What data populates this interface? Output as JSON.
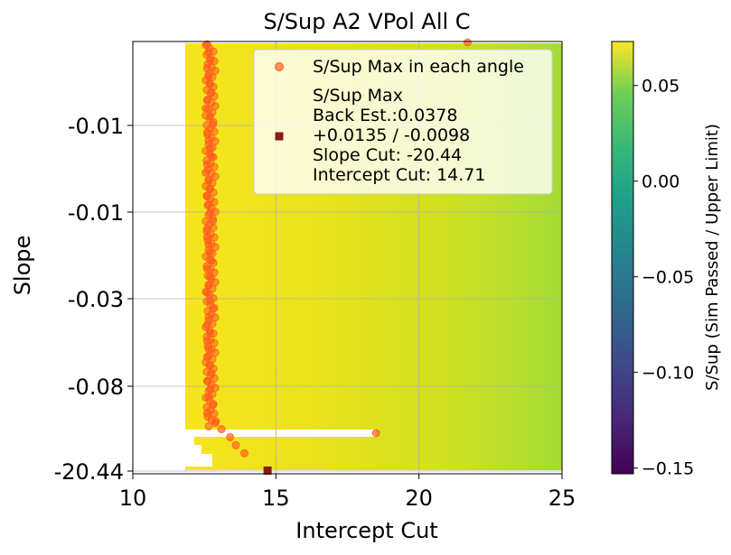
{
  "chart_data": {
    "type": "heatmap",
    "title": "S/Sup A2 VPol All C",
    "xlabel": "Intercept Cut",
    "ylabel": "Slope",
    "xlim": [
      10,
      25
    ],
    "x_ticks": [
      10,
      15,
      20,
      25
    ],
    "y_tick_labels": [
      "-0.01",
      "-0.01",
      "-0.03",
      "-0.08",
      "-20.44"
    ],
    "colormap": "viridis",
    "colorbar": {
      "label": "S/Sup (Sim Passed / Upper Limit)",
      "range": [
        -0.153,
        0.073
      ],
      "ticks": [
        0.05,
        0.0,
        -0.05,
        -0.1,
        -0.15
      ],
      "tick_labels": [
        "0.05",
        "0.00",
        "−0.05",
        "−0.10",
        "−0.15"
      ]
    },
    "grid": true,
    "legend": {
      "placement": "top-right",
      "entries": [
        {
          "label": "S/Sup Max in each angle",
          "marker": "circle",
          "color": "#ff5a1f"
        },
        {
          "label_lines": [
            "S/Sup Max",
            "Back Est.:0.0378",
            "+0.0135 / -0.0098",
            "Slope Cut: -20.44",
            "Intercept Cut: 14.71"
          ],
          "marker": "square",
          "color": "#8b1a10"
        }
      ]
    },
    "series": [
      {
        "name": "S/Sup Max in each angle",
        "marker": "circle",
        "color": "#ff5a1f",
        "points_intercept": [
          12.6,
          12.65,
          12.7,
          12.6,
          12.65,
          12.7,
          12.75,
          12.6,
          12.55,
          12.7,
          12.8,
          12.6,
          12.65,
          12.7,
          12.75,
          12.6,
          12.55,
          12.65,
          12.7,
          12.6,
          12.65,
          12.7,
          12.8,
          12.6,
          12.6,
          12.65,
          12.7,
          12.75,
          12.6,
          12.7,
          12.65,
          12.6,
          12.7,
          12.8,
          12.65,
          12.6,
          12.7,
          12.6,
          12.65,
          12.6,
          12.7,
          12.75,
          12.6,
          12.7,
          12.65,
          12.8,
          12.6,
          12.9,
          13.1,
          13.4,
          13.6,
          13.9,
          18.5,
          21.7
        ]
      },
      {
        "name": "S/Sup Max",
        "marker": "square",
        "color": "#8b1a10",
        "intercept": 14.71,
        "slope": -20.44
      }
    ]
  }
}
